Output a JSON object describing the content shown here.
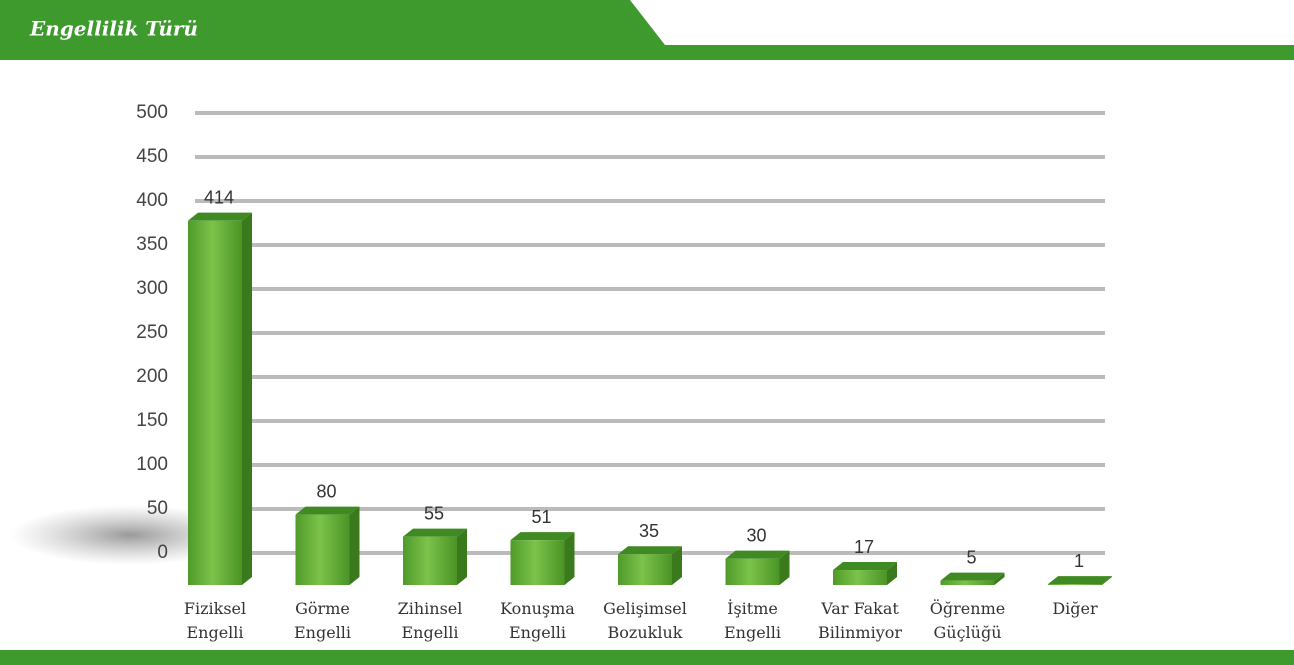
{
  "chart_data": {
    "type": "bar",
    "title": "Engellilik Türü",
    "categories": [
      [
        "Fiziksel",
        "Engelli"
      ],
      [
        "Görme",
        "Engelli"
      ],
      [
        "Zihinsel",
        "Engelli"
      ],
      [
        "Konuşma",
        "Engelli"
      ],
      [
        "Gelişimsel",
        "Bozukluk"
      ],
      [
        "İşitme",
        "Engelli"
      ],
      [
        "Var Fakat",
        "Bilinmiyor"
      ],
      [
        "Öğrenme",
        "Güçlüğü"
      ],
      [
        "Diğer"
      ]
    ],
    "values": [
      414,
      80,
      55,
      51,
      35,
      30,
      17,
      5,
      1
    ],
    "color": "#5aa832",
    "ylim": [
      0,
      500
    ],
    "yticks": [
      0,
      50,
      100,
      150,
      200,
      250,
      300,
      350,
      400,
      450,
      500
    ],
    "grid": true
  }
}
